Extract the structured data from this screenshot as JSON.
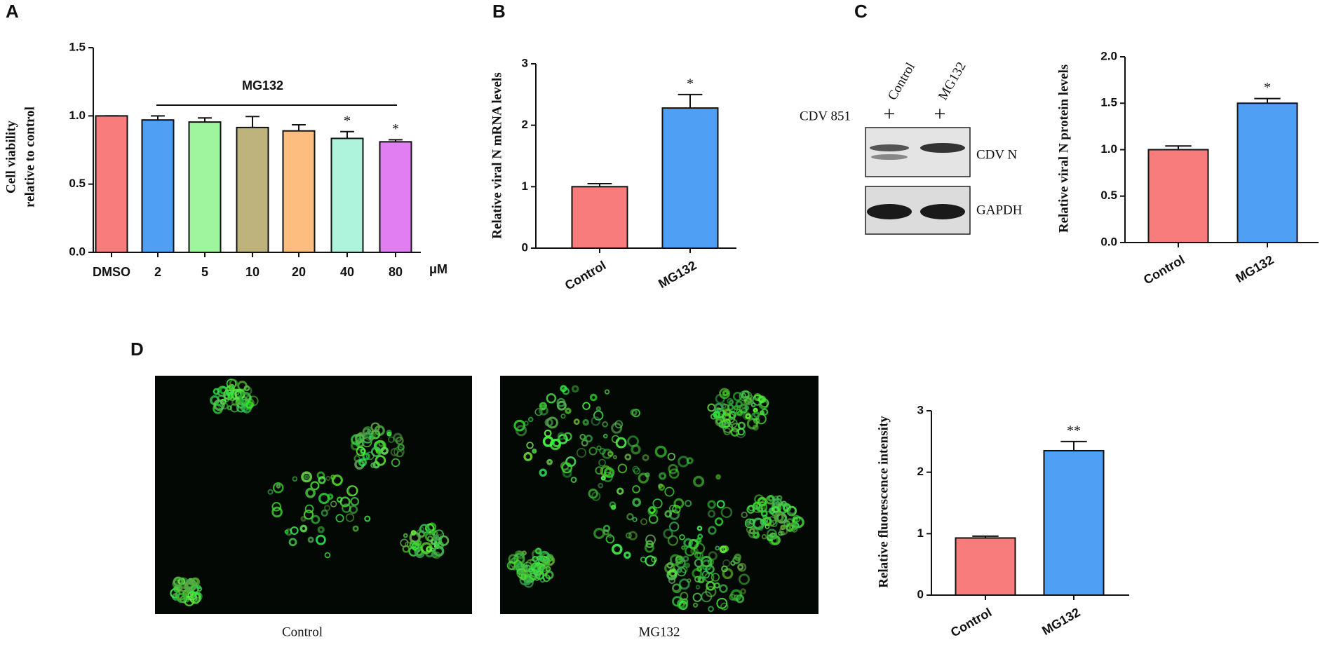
{
  "panel_labels": [
    "A",
    "B",
    "C",
    "D"
  ],
  "blot": {
    "treatment": "CDV 851",
    "lanes": [
      "Control",
      "MG132"
    ],
    "lane_marks": [
      "+",
      "+"
    ],
    "bands": [
      "CDV N",
      "GAPDH"
    ]
  },
  "images": {
    "captions": [
      "Control",
      "MG132"
    ]
  },
  "chart_data": [
    {
      "type": "bar",
      "ylabel": [
        "Cell viability",
        "relative to control"
      ],
      "categories": [
        "DMSO",
        "2",
        "5",
        "10",
        "20",
        "40",
        "80"
      ],
      "x_unit": "μM",
      "bracket_label": "MG132",
      "values": [
        1.0,
        0.97,
        0.955,
        0.915,
        0.89,
        0.835,
        0.81
      ],
      "errors": [
        0,
        0.03,
        0.03,
        0.08,
        0.045,
        0.05,
        0.015
      ],
      "significance": [
        null,
        null,
        null,
        null,
        null,
        "*",
        "*"
      ],
      "colors": [
        "#f87c7c",
        "#4f9ff5",
        "#9ef59e",
        "#beb37d",
        "#fcbd7f",
        "#aef3dc",
        "#e07ef2"
      ],
      "ylim": [
        0,
        1.5
      ],
      "yticks": [
        {
          "value": 0,
          "label": "0.0"
        },
        {
          "value": 0.5,
          "label": "0.5"
        },
        {
          "value": 1,
          "label": "1.0"
        },
        {
          "value": 1.5,
          "label": "1.5"
        }
      ]
    },
    {
      "type": "bar",
      "ylabel": "Relative viral N mRNA levels",
      "categories": [
        "Control",
        "MG132"
      ],
      "values": [
        1.0,
        2.28
      ],
      "errors": [
        0.05,
        0.22
      ],
      "significance": [
        null,
        "*"
      ],
      "colors": [
        "#f87c7c",
        "#4f9ff5"
      ],
      "ylim": [
        0,
        3
      ],
      "yticks": [
        0,
        1,
        2,
        3
      ]
    },
    {
      "type": "bar",
      "ylabel": "Relative viral N protein levels",
      "categories": [
        "Control",
        "MG132"
      ],
      "values": [
        1.0,
        1.5
      ],
      "errors": [
        0.04,
        0.05
      ],
      "significance": [
        null,
        "*"
      ],
      "colors": [
        "#f87c7c",
        "#4f9ff5"
      ],
      "ylim": [
        0,
        2
      ],
      "yticks": [
        {
          "value": 0,
          "label": "0.0"
        },
        {
          "value": 0.5,
          "label": "0.5"
        },
        {
          "value": 1,
          "label": "1.0"
        },
        {
          "value": 1.5,
          "label": "1.5"
        },
        {
          "value": 2,
          "label": "2.0"
        }
      ]
    },
    {
      "type": "bar",
      "ylabel": "Relative fluorescence intensity",
      "categories": [
        "Control",
        "MG132"
      ],
      "values": [
        0.93,
        2.35
      ],
      "errors": [
        0.03,
        0.15
      ],
      "significance": [
        null,
        "**"
      ],
      "colors": [
        "#f87c7c",
        "#4f9ff5"
      ],
      "ylim": [
        0,
        3
      ],
      "yticks": [
        0,
        1,
        2,
        3
      ]
    }
  ]
}
